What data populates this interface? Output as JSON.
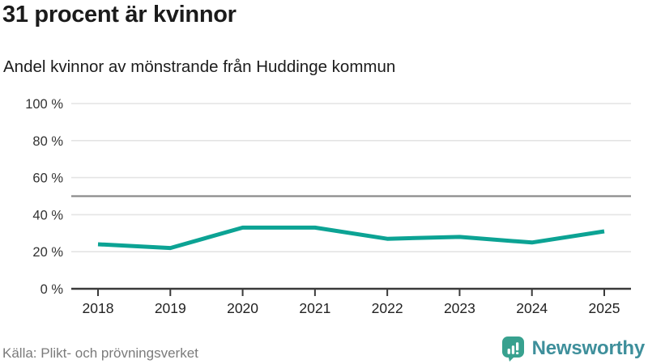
{
  "header": {
    "title": "31 procent är kvinnor",
    "subtitle": "Andel kvinnor av mönstrande från Huddinge kommun"
  },
  "footer": {
    "source": "Källa: Plikt- och prövningsverket",
    "brand": "Newsworthy",
    "brand_icon": "speech-bubble-bar-chart-icon"
  },
  "colors": {
    "line": "#0ca394",
    "reference_line": "#8a8a8a",
    "gridline": "#e4e4e4",
    "axis": "#3a3a3a",
    "ytick_text": "#333333",
    "xtick_text": "#222222",
    "brand_bubble": "#38a18f",
    "brand_bars": "#ffffff",
    "brand_text": "#3e8f9b"
  },
  "chart_data": {
    "type": "line",
    "title": "31 procent är kvinnor",
    "subtitle": "Andel kvinnor av mönstrande från Huddinge kommun",
    "categories": [
      "2018",
      "2019",
      "2020",
      "2021",
      "2022",
      "2023",
      "2024",
      "2025"
    ],
    "series": [
      {
        "name": "Andel kvinnor av mönstrande",
        "values": [
          24,
          22,
          33,
          33,
          27,
          28,
          25,
          31
        ]
      }
    ],
    "unit": "%",
    "ylim": [
      0,
      100
    ],
    "yticks": [
      0,
      20,
      40,
      60,
      80,
      100
    ],
    "ytick_labels": [
      "0 %",
      "20 %",
      "40 %",
      "60 %",
      "80 %",
      "100 %"
    ],
    "reference_line": 50,
    "grid": true,
    "legend": false,
    "source": "Källa: Plikt- och prövningsverket"
  }
}
